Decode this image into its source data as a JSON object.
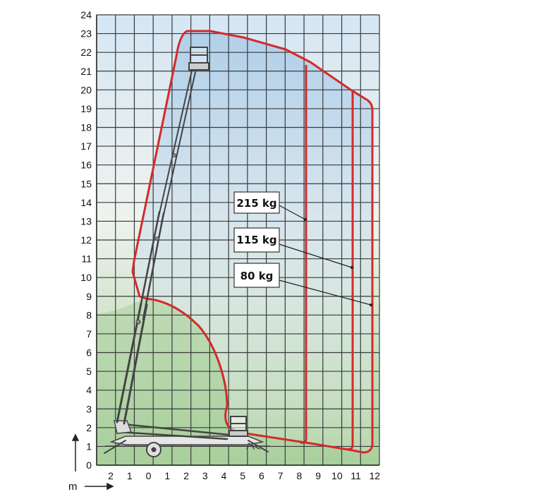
{
  "axes": {
    "x_ticks": [
      "2",
      "1",
      "0",
      "1",
      "2",
      "3",
      "4",
      "5",
      "6",
      "7",
      "8",
      "9",
      "10",
      "11",
      "12"
    ],
    "y_ticks": [
      "0",
      "1",
      "2",
      "3",
      "4",
      "5",
      "6",
      "7",
      "8",
      "9",
      "10",
      "11",
      "12",
      "13",
      "14",
      "15",
      "16",
      "17",
      "18",
      "19",
      "20",
      "21",
      "22",
      "23",
      "24"
    ],
    "unit_label": "m"
  },
  "load_labels": [
    {
      "text": "215 kg",
      "reach_m": 8.2
    },
    {
      "text": "115 kg",
      "reach_m": 10.8
    },
    {
      "text": "80 kg",
      "reach_m": 11.9
    }
  ],
  "colors": {
    "envelope": "#d42a2a",
    "grid": "#3a3a3a",
    "sky": "#b9d6ee",
    "ground": "#b9d7b0",
    "machine": "#444444"
  }
}
